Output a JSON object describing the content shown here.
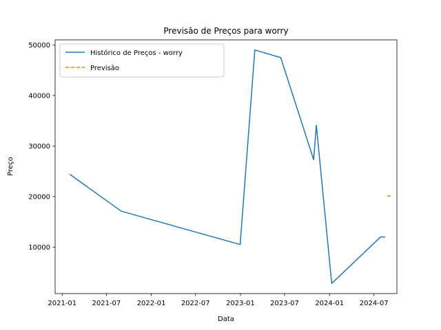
{
  "chart_data": {
    "type": "line",
    "title": "Previsão de Preços para worry",
    "xlabel": "Data",
    "ylabel": "Preço",
    "x_axis": "date",
    "xlim": [
      "2020-12-03",
      "2024-10-03"
    ],
    "ylim": [
      800,
      51000
    ],
    "x_ticks": [
      "2021-01",
      "2021-07",
      "2022-01",
      "2022-07",
      "2023-01",
      "2023-07",
      "2024-01",
      "2024-07"
    ],
    "y_ticks": [
      10000,
      20000,
      30000,
      40000,
      50000
    ],
    "grid": false,
    "legend_position": "upper-left",
    "series": [
      {
        "name": "Histórico de Preços - worry",
        "color": "#1f77b4",
        "style": "solid",
        "points": [
          {
            "x": "2021-02-01",
            "y": 24400
          },
          {
            "x": "2021-08-31",
            "y": 17100
          },
          {
            "x": "2022-12-31",
            "y": 10500
          },
          {
            "x": "2023-03-01",
            "y": 49000
          },
          {
            "x": "2023-06-15",
            "y": 47500
          },
          {
            "x": "2023-10-28",
            "y": 27300
          },
          {
            "x": "2023-11-08",
            "y": 34100
          },
          {
            "x": "2024-01-10",
            "y": 2800
          },
          {
            "x": "2024-07-28",
            "y": 12000
          },
          {
            "x": "2024-08-16",
            "y": 12000
          }
        ]
      },
      {
        "name": "Previsão",
        "color": "#ff7f0e",
        "style": "dashed",
        "points": [
          {
            "x": "2024-08-24",
            "y": 20100
          },
          {
            "x": "2024-09-08",
            "y": 20100
          }
        ]
      }
    ]
  }
}
